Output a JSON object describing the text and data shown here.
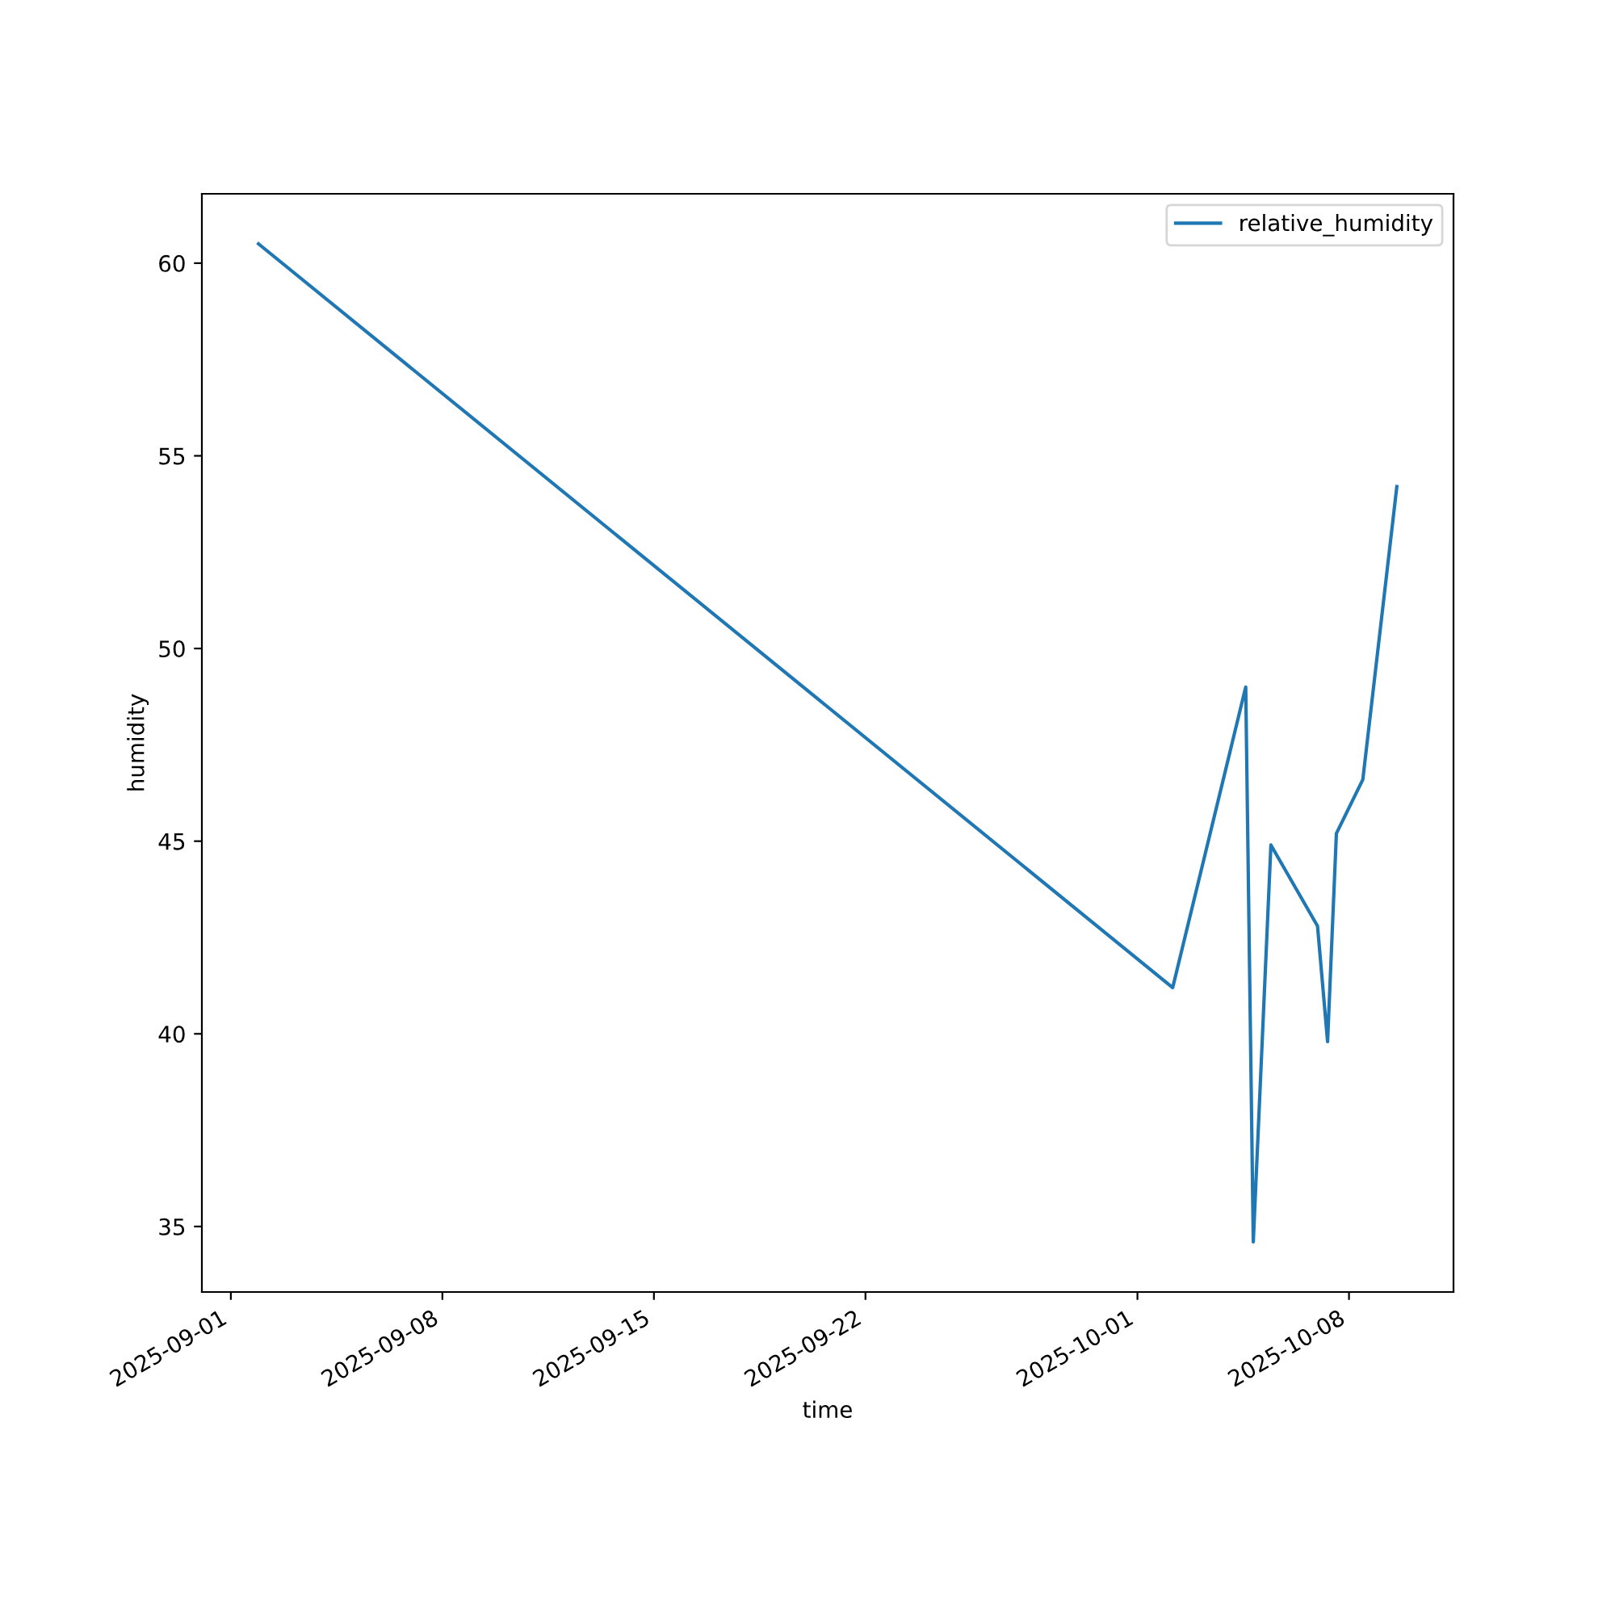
{
  "chart_data": {
    "type": "line",
    "xlabel": "time",
    "ylabel": "humidity",
    "x": [
      "2025-09-01T22:00",
      "2025-10-02T04:00",
      "2025-10-04T14:00",
      "2025-10-04T20:00",
      "2025-10-05T10:00",
      "2025-10-06T23:00",
      "2025-10-07T07:00",
      "2025-10-07T14:00",
      "2025-10-08T11:00",
      "2025-10-09T14:00"
    ],
    "series": [
      {
        "name": "relative_humidity",
        "color": "#1f77b4",
        "values": [
          60.5,
          41.2,
          49.0,
          34.6,
          44.9,
          42.8,
          39.8,
          45.2,
          46.6,
          54.2
        ]
      }
    ],
    "xlim": [
      "2025-08-31T01:00",
      "2025-10-11T11:00"
    ],
    "xticks": [
      "2025-09-01",
      "2025-09-08",
      "2025-09-15",
      "2025-09-22",
      "2025-10-01",
      "2025-10-08"
    ],
    "ylim": [
      33.3,
      61.8
    ],
    "yticks": [
      35,
      40,
      45,
      50,
      55,
      60
    ],
    "legend": "top right",
    "grid": false,
    "marker": "none",
    "line_style": "solid"
  }
}
